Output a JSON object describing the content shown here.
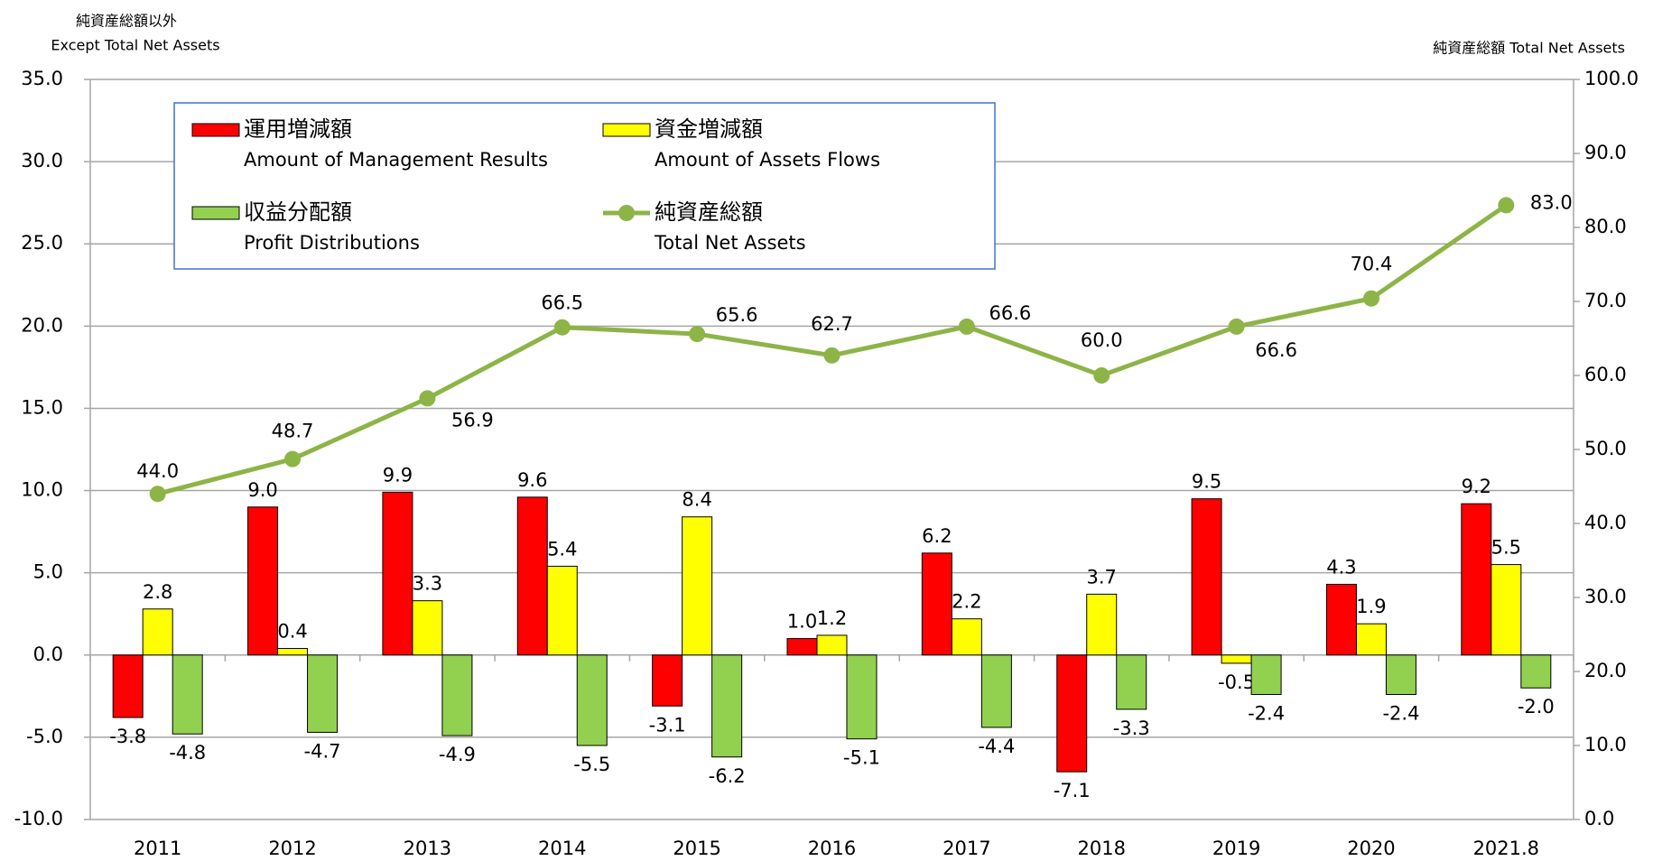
{
  "chart_data": {
    "type": "bar-line",
    "y_label": "純資産総額以外",
    "y_label_en": "Except Total Net Assets",
    "y2_label": "純資産総額 Total Net Assets",
    "categories": [
      "2011",
      "2012",
      "2013",
      "2014",
      "2015",
      "2016",
      "2017",
      "2018",
      "2019",
      "2020",
      "2021.8"
    ],
    "ylim": [
      -10,
      35
    ],
    "yticks": [
      {
        "value": -10,
        "label": "-10.0"
      },
      {
        "value": -5,
        "label": "-5.0"
      },
      {
        "value": 0,
        "label": "0.0"
      },
      {
        "value": 5,
        "label": "5.0"
      },
      {
        "value": 10,
        "label": "10.0"
      },
      {
        "value": 15,
        "label": "15.0"
      },
      {
        "value": 20,
        "label": "20.0"
      },
      {
        "value": 25,
        "label": "25.0"
      },
      {
        "value": 30,
        "label": "30.0"
      },
      {
        "value": 35,
        "label": "35.0"
      }
    ],
    "y2lim": [
      0,
      100
    ],
    "y2ticks": [
      {
        "value": 0,
        "label": "0.0"
      },
      {
        "value": 10,
        "label": "10.0"
      },
      {
        "value": 20,
        "label": "20.0"
      },
      {
        "value": 30,
        "label": "30.0"
      },
      {
        "value": 40,
        "label": "40.0"
      },
      {
        "value": 50,
        "label": "50.0"
      },
      {
        "value": 60,
        "label": "60.0"
      },
      {
        "value": 70,
        "label": "70.0"
      },
      {
        "value": 80,
        "label": "80.0"
      },
      {
        "value": 90,
        "label": "90.0"
      },
      {
        "value": 100,
        "label": "100.0"
      }
    ],
    "grid": true,
    "series": [
      {
        "name": "運用増減額",
        "name_en": "Amount of Management Results",
        "kind": "bar",
        "color": "#ff0000",
        "values": [
          -3.8,
          9.0,
          9.9,
          9.6,
          -3.1,
          1.0,
          6.2,
          -7.1,
          9.5,
          4.3,
          9.2
        ],
        "value_labels": [
          "-3.8",
          "9.0",
          "9.9",
          "9.6",
          "-3.1",
          "1.0",
          "6.2",
          "-7.1",
          "9.5",
          "4.3",
          "9.2"
        ]
      },
      {
        "name": "資金増減額",
        "name_en": "Amount of Assets Flows",
        "kind": "bar",
        "color": "#ffff00",
        "values": [
          2.8,
          0.4,
          3.3,
          5.4,
          8.4,
          1.2,
          2.2,
          3.7,
          -0.5,
          1.9,
          5.5
        ],
        "value_labels": [
          "2.8",
          "0.4",
          "3.3",
          "5.4",
          "8.4",
          "1.2",
          "2.2",
          "3.7",
          "-0.5",
          "1.9",
          "5.5"
        ]
      },
      {
        "name": "収益分配額",
        "name_en": "Profit Distributions",
        "kind": "bar",
        "color": "#92d050",
        "values": [
          -4.8,
          -4.7,
          -4.9,
          -5.5,
          -6.2,
          -5.1,
          -4.4,
          -3.3,
          -2.4,
          -2.4,
          -2.0
        ],
        "value_labels": [
          "-4.8",
          "-4.7",
          "-4.9",
          "-5.5",
          "-6.2",
          "-5.1",
          "-4.4",
          "-3.3",
          "-2.4",
          "-2.4",
          "-2.0"
        ]
      },
      {
        "name": "純資産総額",
        "name_en": "Total Net Assets",
        "kind": "line",
        "axis": "y2",
        "color": "#8db447",
        "values": [
          44.0,
          48.7,
          56.9,
          66.5,
          65.6,
          62.7,
          66.6,
          60.0,
          66.6,
          70.4,
          83.0
        ],
        "value_labels": [
          "44.0",
          "48.7",
          "56.9",
          "66.5",
          "65.6",
          "62.7",
          "66.6",
          "60.0",
          "66.6",
          "70.4",
          "83.0"
        ]
      }
    ]
  }
}
